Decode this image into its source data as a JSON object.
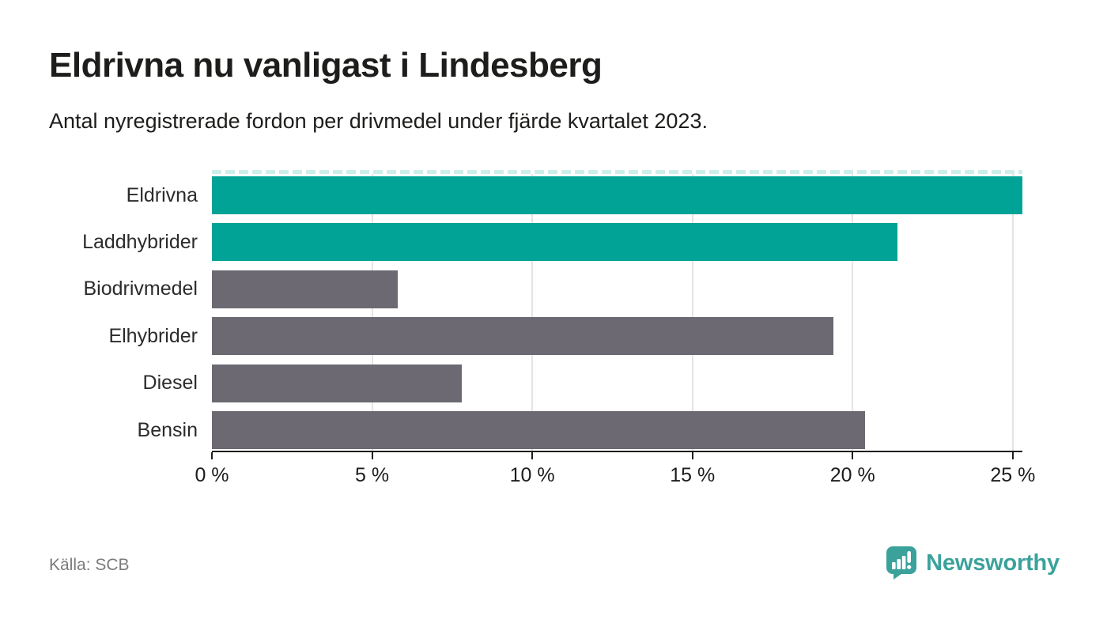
{
  "header": {
    "title": "Eldrivna nu vanligast i Lindesberg",
    "subtitle": "Antal nyregistrerade fordon per drivmedel under fjärde kvartalet 2023."
  },
  "chart_data": {
    "type": "bar",
    "orientation": "horizontal",
    "title": "Eldrivna nu vanligast i Lindesberg",
    "subtitle": "Antal nyregistrerade fordon per drivmedel under fjärde kvartalet 2023.",
    "categories": [
      "Eldrivna",
      "Laddhybrider",
      "Biodrivmedel",
      "Elhybrider",
      "Diesel",
      "Bensin"
    ],
    "values": [
      25.3,
      21.4,
      5.8,
      19.4,
      7.8,
      20.4
    ],
    "unit": "%",
    "highlighted": [
      true,
      true,
      false,
      false,
      false,
      false
    ],
    "xlim": [
      0,
      25.3
    ],
    "x_ticks": [
      0,
      5,
      10,
      15,
      20,
      25
    ],
    "x_tick_labels": [
      "0 %",
      "5 %",
      "10 %",
      "15 %",
      "20 %",
      "25 %"
    ],
    "grid": true,
    "legend": "none",
    "colors": {
      "highlight": "#00a396",
      "default": "#6c6972",
      "dashed_topline": "#cdeeea",
      "gridline": "#e4e4e4",
      "axis": "#1d1d1b"
    },
    "xlabel": "",
    "ylabel": ""
  },
  "footer": {
    "source": "Källa: SCB",
    "brand": "Newsworthy",
    "brand_color": "#3ba29b"
  }
}
